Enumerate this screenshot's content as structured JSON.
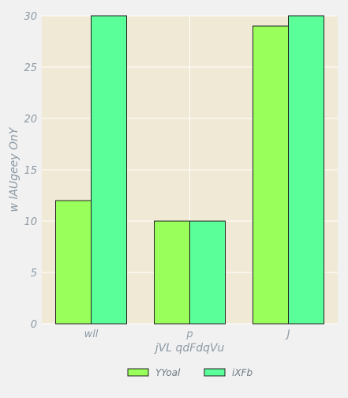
{
  "chart_data": {
    "type": "bar",
    "categories": [
      "wll",
      "p",
      "J"
    ],
    "series": [
      {
        "name": "YYoal",
        "values": [
          12,
          10,
          29
        ],
        "color": "#99ff5a"
      },
      {
        "name": "iXFb",
        "values": [
          30,
          10,
          30
        ],
        "color": "#5aff99"
      }
    ],
    "xlabel": "jVL qdFdqVu",
    "ylabel": "w lAUgeey OnY",
    "ylim": [
      0,
      30
    ],
    "yticks": [
      0,
      5,
      10,
      15,
      20,
      25,
      30
    ],
    "grid": true,
    "legend_position": "bottom-center",
    "colors": {
      "plot_bg": "#f0e9d6",
      "page_bg": "#f1f1f1",
      "grid": "#ffffff",
      "edge": "#222222"
    }
  }
}
